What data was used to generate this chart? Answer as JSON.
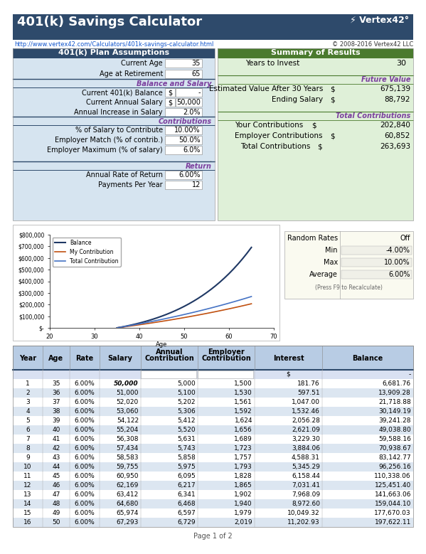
{
  "title": "401(k) Savings Calculator",
  "url": "http://www.vertex42.com/Calculators/401k-savings-calculator.html",
  "copyright": "© 2008-2016 Vertex42 LLC",
  "header_bg": "#2E4A6B",
  "left_header_bg": "#2E4A6B",
  "right_header_bg": "#4A7A2E",
  "section_bg_left": "#D6E4F0",
  "section_bg_right": "#DFF0D8",
  "left_section_header": "401(k) Plan Assumptions",
  "right_section_header": "Summary of Results",
  "subheader_color": "#7B3F9E",
  "subheader_line_color": "#2E4A6B",
  "right_subheader_line_color": "#4A7A2E",
  "table_header_bg": "#B8CCE4",
  "table_subrow_bg": "#D9E1F2",
  "table_row_alt": "#DCE6F1",
  "page_footer": "Page 1 of 2",
  "chart": {
    "balance_color": "#1F3864",
    "my_contrib_color": "#C05010",
    "total_contrib_color": "#4472C4"
  }
}
